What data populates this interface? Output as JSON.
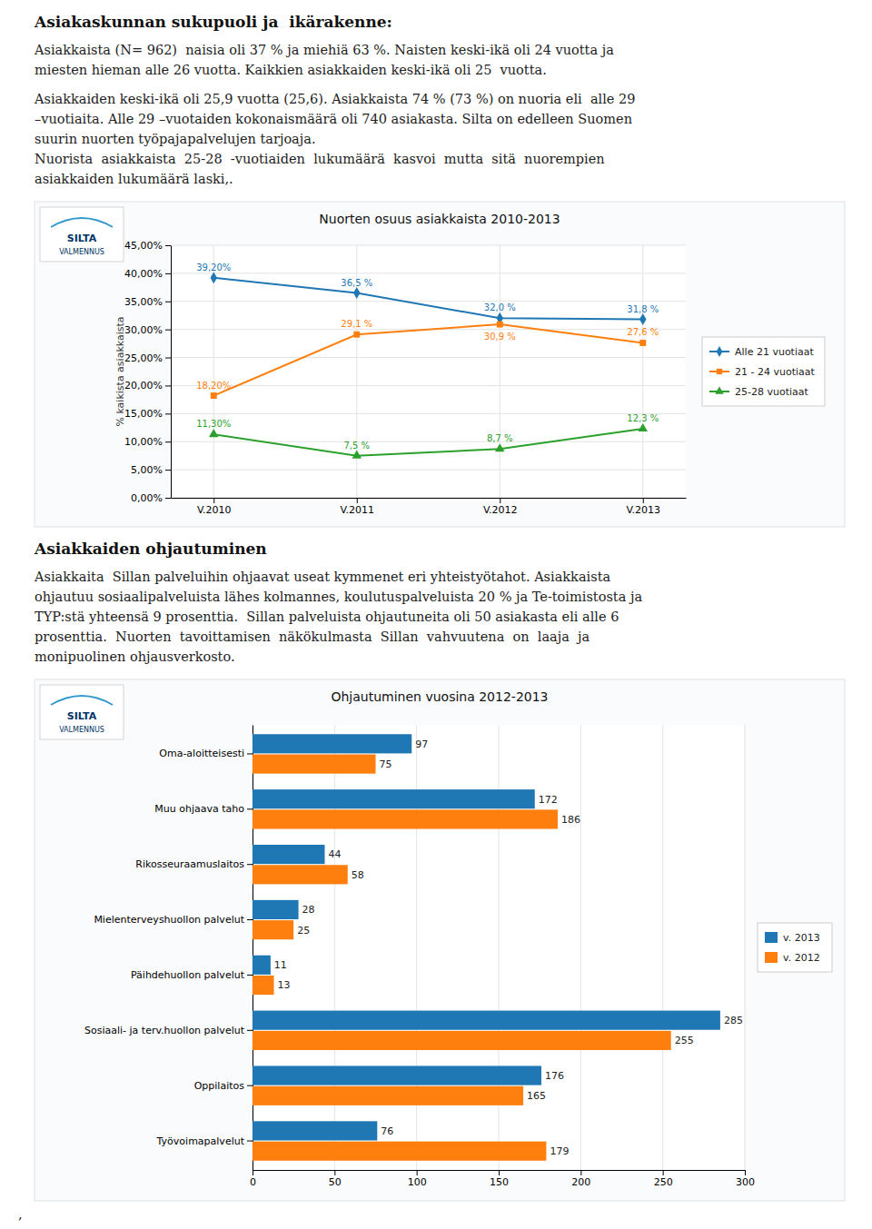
{
  "text_blocks": [
    {
      "title": "Asiakaskunnan sukupuoli ja  ikärakenne:",
      "paragraphs": [
        [
          "Asiakkaista (N= 962)  naisia oli 37 % ja miehiä 63 %. Naisten keski-ikä oli 24 vuotta ja",
          "miesten hieman alle 26 vuotta. Kaikkien asiakkaiden keski-ikä oli 25  vuotta."
        ],
        [
          "Asiakkaiden keski-ikä oli 25,9 vuotta (25,6). Asiakkaista 74 % (73 %) on nuoria eli  alle 29",
          "–vuotiaita. Alle 29 –vuotaiden kokonaismäärä oli 740 asiakasta. Silta on edelleen Suomen",
          "suurin nuorten työpajapalvelujen tarjoaja.",
          "Nuorista  asiakkaista  25-28  -vuotiaiden  lukumäärä  kasvoi  mutta  sitä  nuorempien",
          "asiakkaiden lukumäärä laski,."
        ]
      ]
    },
    {
      "title": "Asiakkaiden ohjautuminen",
      "paragraphs": [
        [
          "Asiakkaita  Sillan palveluihin ohjaavat useat kymmenet eri yhteistyötahot. Asiakkaista",
          "ohjautuu sosiaalipalveluista lähes kolmannes, koulutuspalveluista 20 % ja Te-toimistosta ja",
          "TYP:stä yhteensä 9 prosenttia.  Sillan palveluista ohjautuneita oli 50 asiakasta eli alle 6",
          "prosenttia.  Nuorten  tavoittamisen  näkökulmasta  Sillan  vahvuutena  on  laaja  ja",
          "monipuolinen ohjausverkosto."
        ]
      ]
    }
  ],
  "logo_texts": [
    "SILTA",
    "VALMENNUS"
  ],
  "footer": ",",
  "chart_data": [
    {
      "type": "line",
      "title": "Nuorten osuus asiakkaista 2010-2013",
      "categories": [
        "V.2010",
        "V.2011",
        "V.2012",
        "V.2013"
      ],
      "y_label": "% kaikista asiakkaista",
      "ylim": [
        0,
        45
      ],
      "yticks": [
        {
          "value": 0,
          "label": "0,00%"
        },
        {
          "value": 5,
          "label": "5,00%"
        },
        {
          "value": 10,
          "label": "10,00%"
        },
        {
          "value": 15,
          "label": "15,00%"
        },
        {
          "value": 20,
          "label": "20,00%"
        },
        {
          "value": 25,
          "label": "25,00%"
        },
        {
          "value": 30,
          "label": "30,00%"
        },
        {
          "value": 35,
          "label": "35,00%"
        },
        {
          "value": 40,
          "label": "40,00%"
        },
        {
          "value": 45,
          "label": "45,00%"
        }
      ],
      "grid": true,
      "legend": "right",
      "data_labels": true,
      "series": [
        {
          "name": "Alle 21 vuotiaat",
          "marker": "diamond",
          "values": [
            39.2,
            36.5,
            32.0,
            31.8
          ],
          "value_labels": [
            "39,20%",
            "36,5 %",
            "32,0 %",
            "31,8 %"
          ]
        },
        {
          "name": "21 - 24 vuotiaat",
          "marker": "square",
          "values": [
            18.2,
            29.1,
            30.9,
            27.6
          ],
          "value_labels": [
            "18,20%",
            "29,1 %",
            "30,9 %",
            "27,6 %"
          ]
        },
        {
          "name": "25-28 vuotiaat",
          "marker": "triangle",
          "values": [
            11.3,
            7.5,
            8.7,
            12.3
          ],
          "value_labels": [
            "11,30%",
            "7,5 %",
            "8,7 %",
            "12,3 %"
          ]
        }
      ]
    },
    {
      "type": "bar",
      "orientation": "horizontal",
      "title": "Ohjautuminen vuosina 2012-2013",
      "categories": [
        "Oma-aloitteisesti",
        "Muu ohjaava taho",
        "Rikosseuraamuslaitos",
        "Mielenterveyshuollon palvelut",
        "Päihdehuollon palvelut",
        "Sosiaali- ja terv.huollon palvelut",
        "Oppilaitos",
        "Työvoimapalvelut"
      ],
      "xlim": [
        0,
        300
      ],
      "xticks": [
        0,
        50,
        100,
        150,
        200,
        250,
        300
      ],
      "grid": true,
      "legend": "right",
      "data_labels": true,
      "series": [
        {
          "name": "v. 2013",
          "values": [
            97,
            172,
            44,
            28,
            11,
            285,
            176,
            76
          ]
        },
        {
          "name": "v. 2012",
          "values": [
            75,
            186,
            58,
            25,
            13,
            255,
            165,
            179
          ]
        }
      ]
    }
  ]
}
